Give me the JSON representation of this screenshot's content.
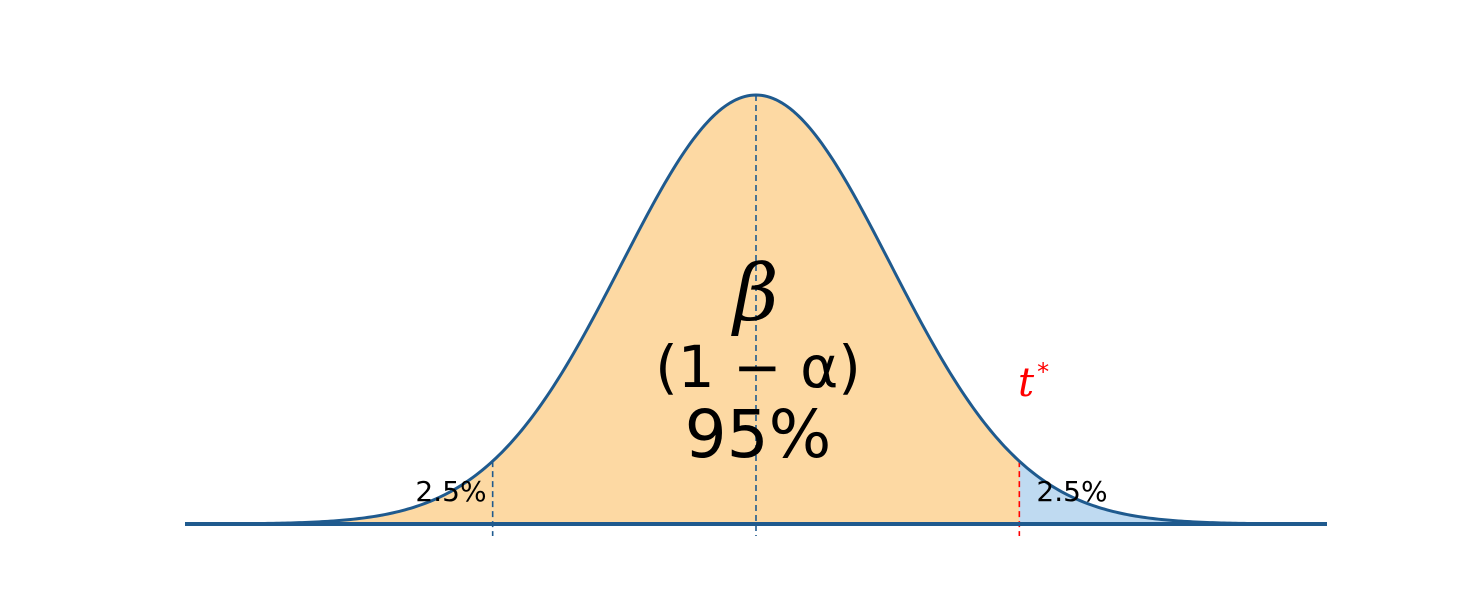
{
  "labels": {
    "beta": "β",
    "one_minus_alpha": "(1 − α)",
    "center_percent": "95%",
    "left_tail_percent": "2.5%",
    "right_tail_percent": "2.5%",
    "critical_value": "t",
    "critical_superscript": "*"
  },
  "distribution": {
    "type": "normal",
    "z_min": -4.25,
    "z_max": 4.25,
    "left_boundary_z": -1.96,
    "right_boundary_z": 1.96
  },
  "colors": {
    "curve": "#1f5a8e",
    "center_fill": "#fdd9a3",
    "right_tail_fill": "#bfdaf1",
    "left_tail_fill": "#fdd9a3",
    "critical_line": "#ff0000",
    "guide_line": "#1f5a8e",
    "text": "#000000",
    "critical_text": "#ff0000"
  }
}
